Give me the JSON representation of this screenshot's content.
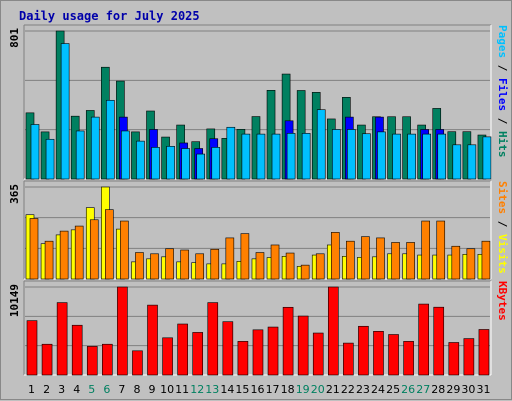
{
  "title": "Daily usage for July 2025",
  "colors": {
    "hits": "#008060",
    "files": "#0000ff",
    "pages": "#00c0ff",
    "visits": "#ffff00",
    "sites": "#ff8000",
    "kbytes": "#ff0000",
    "weekend": "#008060",
    "weekday": "#000000",
    "panel_bg": "#c0c0c0",
    "grid": "#808080"
  },
  "chart_data": [
    {
      "type": "bar",
      "panel": "hits-files-pages",
      "categories": [
        "1",
        "2",
        "3",
        "4",
        "5",
        "6",
        "7",
        "8",
        "9",
        "10",
        "11",
        "12",
        "13",
        "14",
        "15",
        "16",
        "17",
        "18",
        "19",
        "20",
        "21",
        "22",
        "23",
        "24",
        "25",
        "26",
        "27",
        "28",
        "29",
        "30",
        "31"
      ],
      "weekend_days": [
        "5",
        "6",
        "12",
        "13",
        "19",
        "20",
        "26",
        "27"
      ],
      "ymax_label": "801",
      "ylim": [
        0,
        801
      ],
      "axis_label_parts": [
        {
          "text": "Pages",
          "color": "#00c0ff"
        },
        {
          "text": "Files",
          "color": "#0000ff"
        },
        {
          "text": "Hits",
          "color": "#008060"
        }
      ],
      "series": [
        {
          "name": "Hits",
          "values": [
            358,
            255,
            801,
            340,
            371,
            605,
            530,
            255,
            368,
            227,
            292,
            202,
            271,
            220,
            269,
            338,
            480,
            568,
            479,
            469,
            325,
            442,
            292,
            337,
            337,
            337,
            292,
            382,
            256,
            256,
            238
          ]
        },
        {
          "name": "Files",
          "values": [
            0,
            0,
            0,
            0,
            0,
            0,
            335,
            0,
            268,
            0,
            195,
            165,
            218,
            0,
            0,
            0,
            0,
            315,
            0,
            0,
            0,
            335,
            0,
            335,
            0,
            0,
            268,
            268,
            0,
            0,
            0
          ]
        },
        {
          "name": "Pages",
          "values": [
            295,
            215,
            733,
            260,
            335,
            426,
            260,
            205,
            171,
            177,
            165,
            135,
            171,
            280,
            243,
            243,
            243,
            247,
            247,
            375,
            268,
            268,
            245,
            255,
            243,
            243,
            243,
            243,
            185,
            185,
            228
          ]
        }
      ]
    },
    {
      "type": "bar",
      "panel": "visits-sites",
      "categories": [
        "1",
        "2",
        "3",
        "4",
        "5",
        "6",
        "7",
        "8",
        "9",
        "10",
        "11",
        "12",
        "13",
        "14",
        "15",
        "16",
        "17",
        "18",
        "19",
        "20",
        "21",
        "22",
        "23",
        "24",
        "25",
        "26",
        "27",
        "28",
        "29",
        "30",
        "31"
      ],
      "ymax_label": "365",
      "ylim": [
        0,
        365
      ],
      "axis_label_parts": [
        {
          "text": "Sites",
          "color": "#ff8000"
        },
        {
          "text": "Visits",
          "color": "#ffff00"
        }
      ],
      "series": [
        {
          "name": "Visits",
          "values": [
            255,
            140,
            175,
            195,
            283,
            365,
            198,
            68,
            80,
            88,
            68,
            65,
            60,
            60,
            70,
            80,
            85,
            90,
            50,
            95,
            135,
            90,
            86,
            88,
            100,
            100,
            95,
            95,
            95,
            98,
            98
          ]
        },
        {
          "name": "Sites",
          "values": [
            240,
            150,
            190,
            210,
            235,
            275,
            230,
            105,
            100,
            120,
            115,
            100,
            118,
            163,
            180,
            105,
            135,
            103,
            55,
            100,
            185,
            150,
            168,
            163,
            145,
            145,
            230,
            230,
            130,
            120,
            150
          ]
        }
      ]
    },
    {
      "type": "bar",
      "panel": "kbytes",
      "categories": [
        "1",
        "2",
        "3",
        "4",
        "5",
        "6",
        "7",
        "8",
        "9",
        "10",
        "11",
        "12",
        "13",
        "14",
        "15",
        "16",
        "17",
        "18",
        "19",
        "20",
        "21",
        "22",
        "23",
        "24",
        "25",
        "26",
        "27",
        "28",
        "29",
        "30",
        "31"
      ],
      "ymax_label": "10149",
      "ylim": [
        0,
        10149
      ],
      "axis_label_parts": [
        {
          "text": "KBytes",
          "color": "#ff0000"
        }
      ],
      "series": [
        {
          "name": "KBytes",
          "values": [
            6270,
            3550,
            8350,
            5740,
            3300,
            3550,
            10149,
            2790,
            8060,
            4290,
            5880,
            4910,
            8350,
            6150,
            3880,
            5210,
            5530,
            7810,
            6800,
            4840,
            10149,
            3680,
            5620,
            5040,
            4670,
            3880,
            8180,
            7820,
            3750,
            4200,
            5250
          ]
        }
      ]
    }
  ]
}
